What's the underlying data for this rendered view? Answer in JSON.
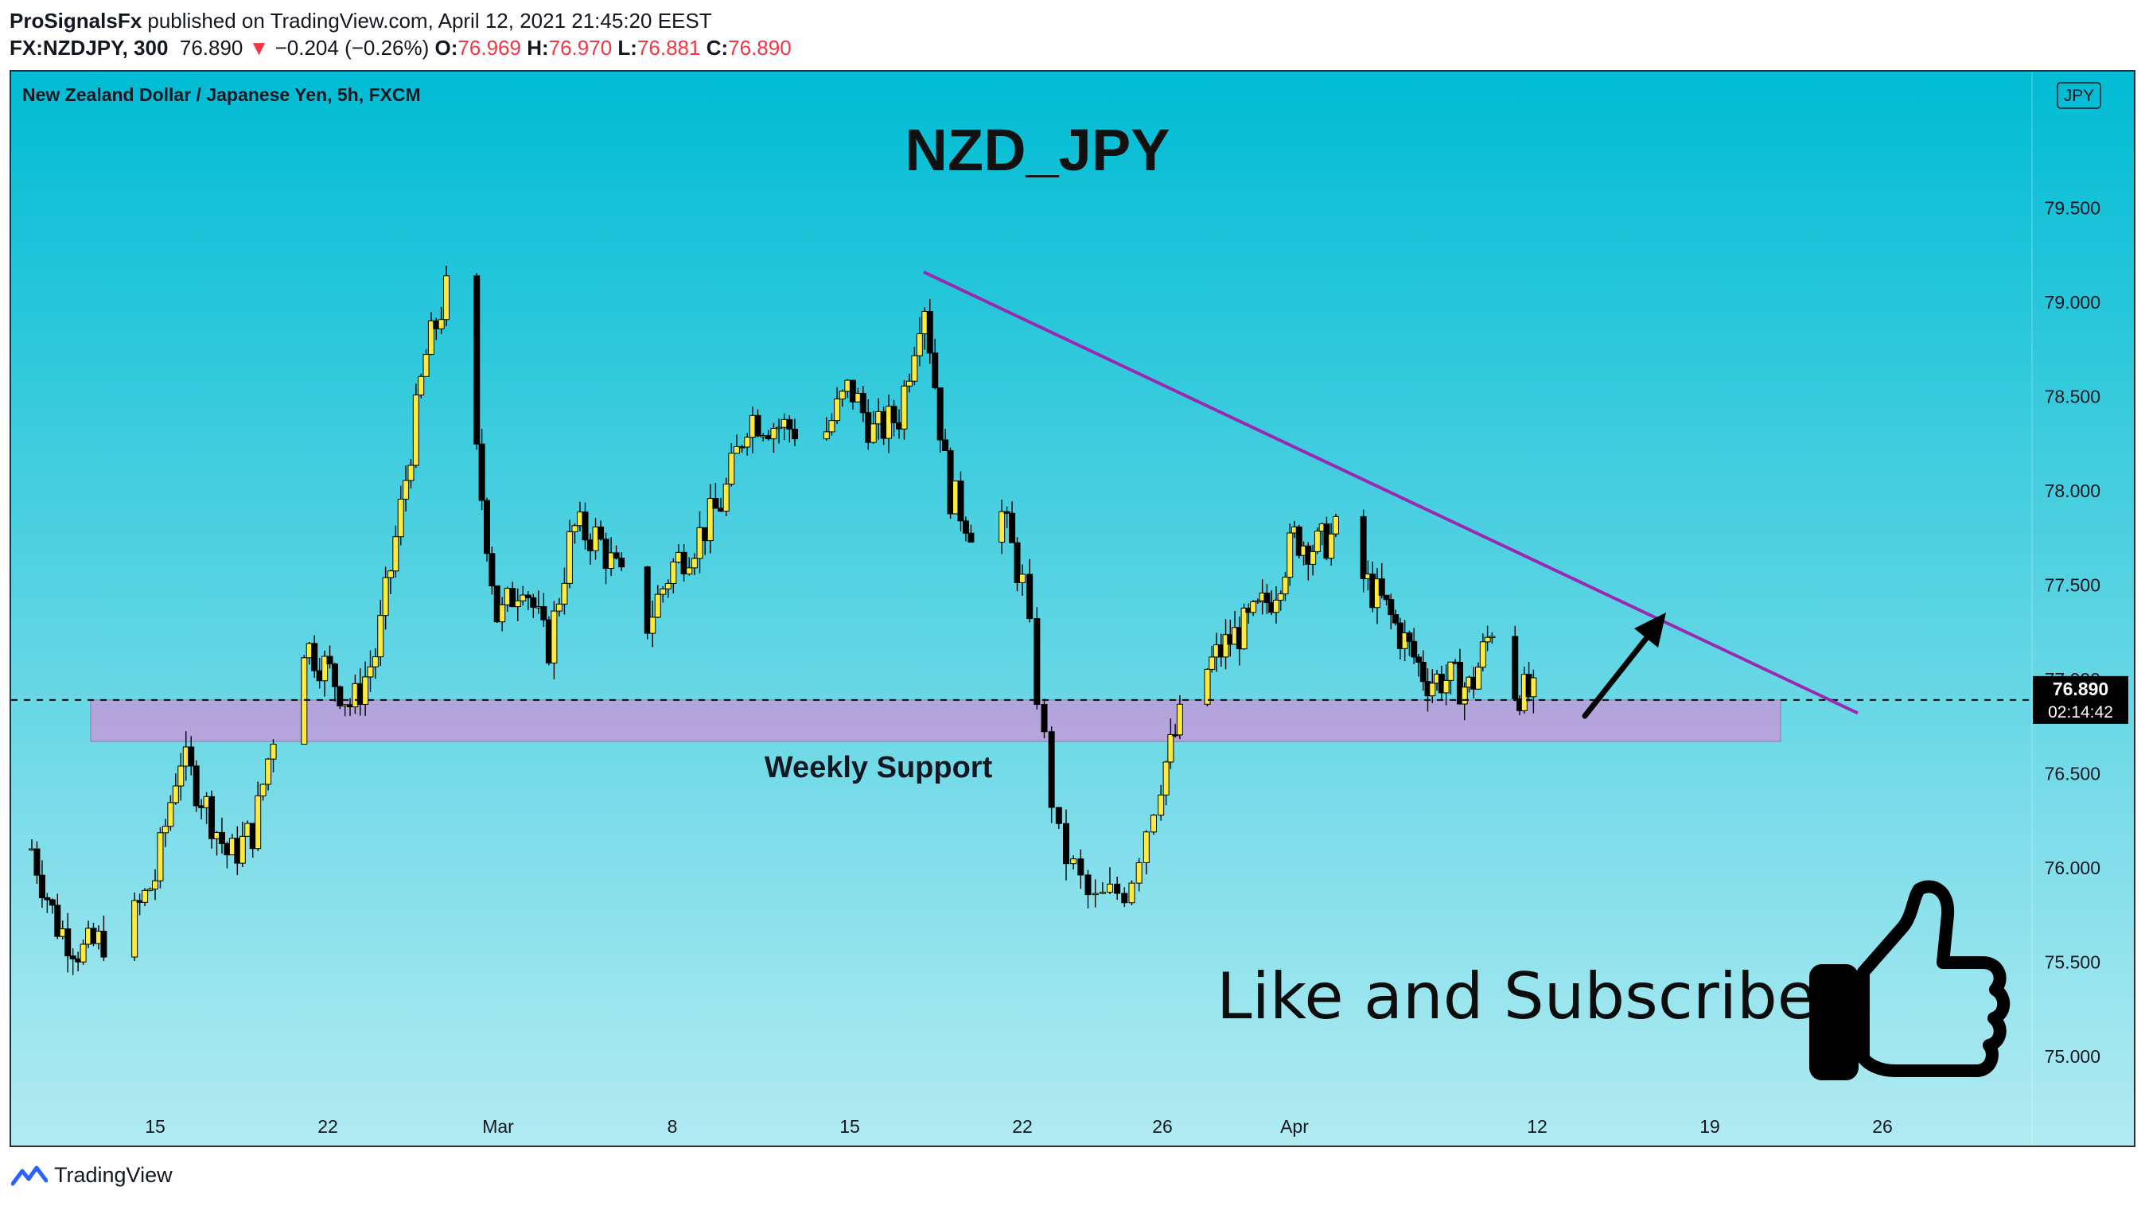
{
  "header": {
    "author": "ProSignalsFx",
    "published_text": "published on TradingView.com, April 12, 2021 21:45:20 EEST",
    "symbol": "FX:NZDJPY, 300",
    "last": "76.890",
    "arrow": "▼",
    "change": "−0.204 (−0.26%)",
    "o_label": "O:",
    "o_value": "76.969",
    "h_label": "H:",
    "h_value": "76.970",
    "l_label": "L:",
    "l_value": "76.881",
    "c_label": "C:",
    "c_value": "76.890"
  },
  "footer": {
    "brand": "TradingView",
    "icon": "tradingview-logo-icon"
  },
  "colors": {
    "bg_top": "#00bcd4",
    "bg_bottom": "#b2ebf2",
    "candle_up": "#ffeb3b",
    "candle_down": "#000000",
    "trendline": "#9c27b0",
    "support_zone": "#ce93d8",
    "down_text": "#f23645"
  },
  "chart_data": {
    "type": "candlestick",
    "title": "New Zealand Dollar / Japanese Yen, 5h, FXCM",
    "currency_badge": "JPY",
    "headline": "NZD_JPY",
    "ylim": [
      74.75,
      79.97
    ],
    "y_ticks": [
      "79.500",
      "79.000",
      "78.500",
      "78.000",
      "77.500",
      "77.000",
      "76.500",
      "76.000",
      "75.500",
      "75.000"
    ],
    "x_ticks": [
      "15",
      "22",
      "Mar",
      "8",
      "15",
      "22",
      "26",
      "Apr",
      "12",
      "19",
      "26"
    ],
    "last_price_label": "76.890",
    "countdown_label": "02:14:42",
    "last_price": 76.89,
    "support_zone": {
      "low": 76.67,
      "high": 76.89,
      "label": "Weekly Support"
    },
    "trendline": {
      "from": {
        "date": "2021-03-18",
        "price": 79.16
      },
      "to": {
        "date": "2021-04-25",
        "price": 76.82
      }
    },
    "annotation": "Like and Subscribe",
    "annotation_icon": "thumbs-up-icon",
    "arrow_icon": "arrow-up-right-icon",
    "ohlc_anchor_points": [
      [
        "2021-02-10",
        76.1
      ],
      [
        "2021-02-11",
        75.7
      ],
      [
        "2021-02-12",
        75.55
      ],
      [
        "2021-02-14",
        75.7
      ],
      [
        "2021-02-15",
        75.95
      ],
      [
        "2021-02-16",
        76.6
      ],
      [
        "2021-02-17",
        76.35
      ],
      [
        "2021-02-18",
        76.05
      ],
      [
        "2021-02-19",
        76.2
      ],
      [
        "2021-02-20",
        76.85
      ],
      [
        "2021-02-21",
        77.2
      ],
      [
        "2021-02-22",
        77.05
      ],
      [
        "2021-02-23",
        76.85
      ],
      [
        "2021-02-24",
        77.15
      ],
      [
        "2021-02-25",
        77.9
      ],
      [
        "2021-02-26",
        78.7
      ],
      [
        "2021-02-27",
        79.1
      ],
      [
        "2021-02-28",
        78.3
      ],
      [
        "2021-03-01",
        77.3
      ],
      [
        "2021-03-02",
        77.55
      ],
      [
        "2021-03-03",
        77.15
      ],
      [
        "2021-03-04",
        77.8
      ],
      [
        "2021-03-05",
        77.75
      ],
      [
        "2021-03-06",
        77.5
      ],
      [
        "2021-03-07",
        77.3
      ],
      [
        "2021-03-08",
        77.6
      ],
      [
        "2021-03-09",
        77.75
      ],
      [
        "2021-03-10",
        77.95
      ],
      [
        "2021-03-11",
        78.4
      ],
      [
        "2021-03-12",
        78.35
      ],
      [
        "2021-03-14",
        78.3
      ],
      [
        "2021-03-15",
        78.55
      ],
      [
        "2021-03-16",
        78.3
      ],
      [
        "2021-03-17",
        78.4
      ],
      [
        "2021-03-18",
        79.05
      ],
      [
        "2021-03-19",
        78.0
      ],
      [
        "2021-03-20",
        77.8
      ],
      [
        "2021-03-21",
        77.95
      ],
      [
        "2021-03-22",
        77.5
      ],
      [
        "2021-03-23",
        76.15
      ],
      [
        "2021-03-24",
        75.8
      ],
      [
        "2021-03-25",
        75.9
      ],
      [
        "2021-03-26",
        76.5
      ],
      [
        "2021-03-27",
        76.85
      ],
      [
        "2021-03-28",
        77.05
      ],
      [
        "2021-03-29",
        77.2
      ],
      [
        "2021-03-30",
        77.3
      ],
      [
        "2021-03-31",
        77.45
      ],
      [
        "2021-04-01",
        77.75
      ],
      [
        "2021-04-02",
        77.7
      ],
      [
        "2021-04-03",
        77.78
      ],
      [
        "2021-04-04",
        77.55
      ],
      [
        "2021-04-05",
        77.4
      ],
      [
        "2021-04-06",
        77.2
      ],
      [
        "2021-04-07",
        77.0
      ],
      [
        "2021-04-08",
        77.0
      ],
      [
        "2021-04-09",
        76.95
      ],
      [
        "2021-04-10",
        77.3
      ],
      [
        "2021-04-11",
        76.95
      ],
      [
        "2021-04-12",
        76.89
      ]
    ]
  }
}
